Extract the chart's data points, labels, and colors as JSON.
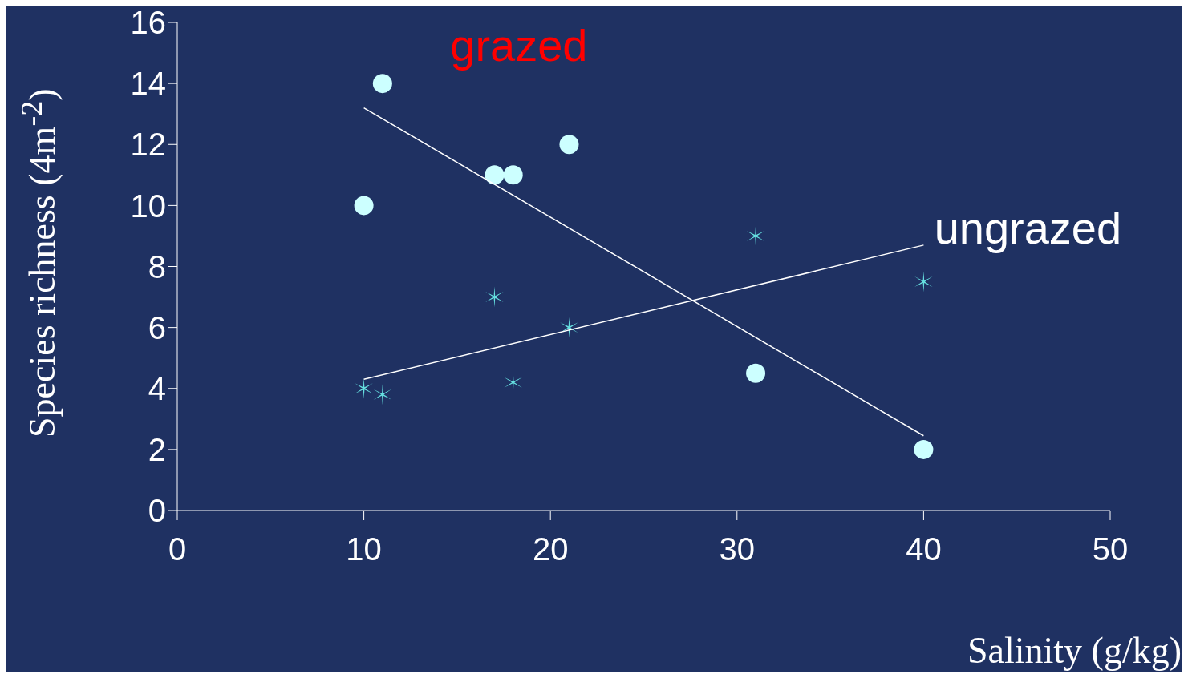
{
  "chart_data": {
    "type": "scatter",
    "xlabel": "Salinity (g/kg)",
    "ylabel": "Species richness (4m$^{-2}$)",
    "xlim": [
      0,
      50
    ],
    "xticks": [
      0,
      10,
      20,
      30,
      40,
      50
    ],
    "ylim": [
      0,
      16
    ],
    "yticks": [
      0,
      2,
      4,
      6,
      8,
      10,
      12,
      14,
      16
    ],
    "series": [
      {
        "name": "grazed",
        "color": "#ccffff",
        "marker": "circle",
        "x": [
          10,
          11,
          17,
          18,
          21,
          31,
          40
        ],
        "values": [
          10,
          14,
          11,
          11,
          12,
          4.5,
          2
        ]
      },
      {
        "name": "ungrazed",
        "color": "#66e0e0",
        "marker": "cross",
        "x": [
          10,
          11,
          17,
          18,
          21,
          31,
          40
        ],
        "values": [
          4,
          3.8,
          7,
          4.2,
          6,
          9,
          7.5
        ]
      },
      {
        "type": "line",
        "color": "#ffffff",
        "marker": "none",
        "x": [
          10,
          40
        ],
        "values": [
          13.2,
          2.45
        ]
      },
      {
        "type": "line",
        "color": "#ffffff",
        "marker": "none",
        "x": [
          10,
          40
        ],
        "values": [
          4.3,
          8.7
        ]
      }
    ]
  }
}
